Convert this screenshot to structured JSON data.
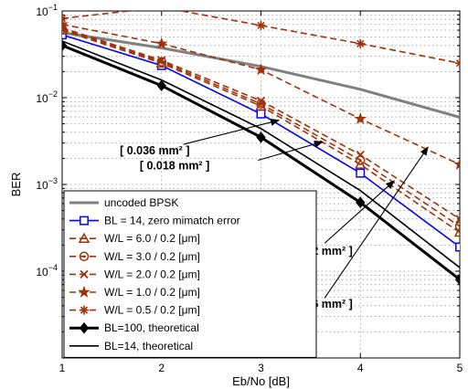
{
  "chart_data": {
    "type": "line",
    "title": "",
    "xlabel": "Eb/No [dB]",
    "ylabel": "BER",
    "x": [
      1,
      2,
      3,
      4,
      5
    ],
    "xlim": [
      1,
      5
    ],
    "ylim": [
      1e-05,
      0.1
    ],
    "yscale": "log",
    "grid": true,
    "x_ticks": [
      "1",
      "2",
      "3",
      "4",
      "5"
    ],
    "y_ticks": [
      {
        "value": 0.1,
        "base": "10",
        "exp": "−1"
      },
      {
        "value": 0.01,
        "base": "10",
        "exp": "−2"
      },
      {
        "value": 0.001,
        "base": "10",
        "exp": "−3"
      },
      {
        "value": 0.0001,
        "base": "10",
        "exp": "−4"
      }
    ],
    "legend_position": "bottom-left",
    "series": [
      {
        "name": "uncoded BPSK",
        "color": "#808080",
        "dash": "solid",
        "marker": "none",
        "width": 3,
        "values": [
          0.0563,
          0.0375,
          0.0229,
          0.0125,
          0.00595
        ]
      },
      {
        "name": "BL = 14, zero mimatch error",
        "color": "#0000ff",
        "dash": "solid",
        "marker": "square",
        "width": 1.6,
        "values": [
          0.053,
          0.0235,
          0.0065,
          0.00135,
          0.00019
        ]
      },
      {
        "name": "W/L = 6.0 / 0.2 [μm]",
        "color": "#a0320a",
        "dash": "dashed",
        "marker": "triangle",
        "width": 1.6,
        "values": [
          0.06,
          0.025,
          0.008,
          0.0017,
          0.00028
        ]
      },
      {
        "name": "W/L = 3.0 / 0.2 [μm]",
        "color": "#a0320a",
        "dash": "dashed",
        "marker": "circle-dot",
        "width": 1.6,
        "values": [
          0.062,
          0.026,
          0.0085,
          0.0019,
          0.00033
        ]
      },
      {
        "name": "W/L = 2.0 / 0.2 [μm]",
        "color": "#a0320a",
        "dash": "dashed",
        "marker": "x",
        "width": 1.6,
        "values": [
          0.064,
          0.027,
          0.0092,
          0.0022,
          0.0004
        ]
      },
      {
        "name": "W/L = 1.0 / 0.2 [μm]",
        "color": "#a0320a",
        "dash": "dashed",
        "marker": "star",
        "width": 1.6,
        "values": [
          0.07,
          0.042,
          0.021,
          0.0057,
          0.0017
        ]
      },
      {
        "name": "W/L = 0.5 / 0.2 [μm]",
        "color": "#a0320a",
        "dash": "dashed",
        "marker": "asterisk",
        "width": 1.6,
        "values": [
          0.082,
          0.11,
          0.068,
          0.042,
          0.025
        ]
      },
      {
        "name": "BL=100, theoretical",
        "color": "#000000",
        "dash": "solid",
        "marker": "diamond",
        "width": 3,
        "values": [
          0.04,
          0.0138,
          0.0035,
          0.00062,
          8e-05
        ]
      },
      {
        "name": "BL=14,  theoretical",
        "color": "#000000",
        "dash": "solid",
        "marker": "none",
        "width": 1.6,
        "values": [
          0.045,
          0.016,
          0.0044,
          0.00085,
          0.00011
        ]
      }
    ],
    "annotations": [
      {
        "text": "[ 0.036 mm² ]",
        "label_x": 1.58,
        "label_y": 0.00245,
        "arrow_from": [
          2.22,
          0.0029
        ],
        "arrow_to": [
          3.18,
          0.0055
        ]
      },
      {
        "text": "[ 0.018 mm² ]",
        "label_x": 1.78,
        "label_y": 0.00165,
        "arrow_from": [
          2.97,
          0.0019
        ],
        "arrow_to": [
          3.62,
          0.0031
        ]
      },
      {
        "text": "[ 0.012 mm² ]",
        "label_x": 3.22,
        "label_y": 0.00017,
        "arrow_from": [
          3.64,
          0.00021
        ],
        "arrow_to": [
          4.34,
          0.0011
        ]
      },
      {
        "text": "[ 0.006 mm² ]",
        "label_x": 3.22,
        "label_y": 4.2e-05,
        "arrow_from": [
          3.64,
          4.9e-05
        ],
        "arrow_to": [
          4.68,
          0.0027
        ]
      }
    ]
  }
}
